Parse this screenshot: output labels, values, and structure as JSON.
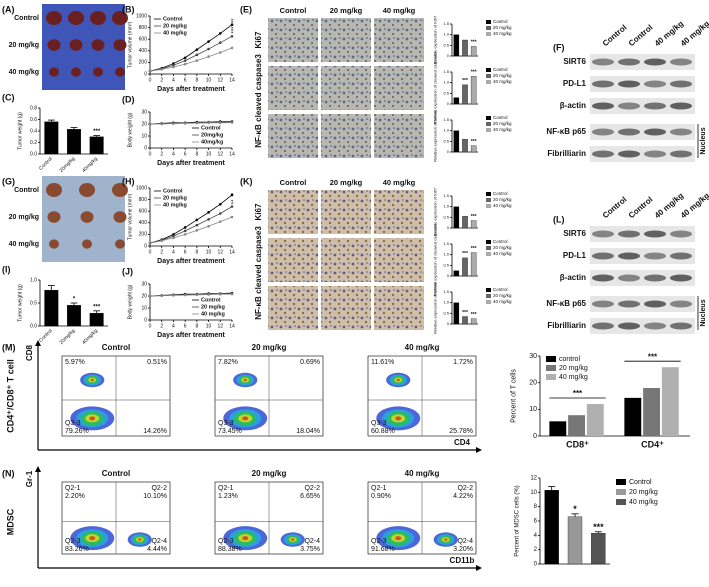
{
  "panels": {
    "A": {
      "label": "(A)",
      "rows": [
        "Control",
        "20 mg/kg",
        "40 mg/kg"
      ]
    },
    "B": {
      "label": "(B)",
      "type": "line",
      "y_label": "Tumor volume (mm³)",
      "x_label": "Days after treatment",
      "x": [
        0,
        2,
        4,
        6,
        8,
        10,
        12,
        14
      ],
      "xlim": [
        0,
        14
      ],
      "xticks": [
        0,
        2,
        4,
        6,
        8,
        10,
        12,
        14
      ],
      "ylim": [
        0,
        1000
      ],
      "yticks": [
        0,
        200,
        400,
        600,
        800,
        1000
      ],
      "legend": "upper left",
      "annotations": [
        "***",
        "***"
      ],
      "series": [
        {
          "name": "Control",
          "color": "#000000",
          "values": [
            50,
            100,
            180,
            280,
            420,
            560,
            700,
            850
          ]
        },
        {
          "name": "20 mg/kg",
          "color": "#444444",
          "values": [
            50,
            90,
            150,
            230,
            330,
            430,
            540,
            650
          ]
        },
        {
          "name": "40 mg/kg",
          "color": "#888888",
          "values": [
            50,
            80,
            120,
            170,
            230,
            300,
            370,
            450
          ]
        }
      ]
    },
    "C": {
      "label": "(C)",
      "type": "bar",
      "y_label": "Tumor weight (g)",
      "categories": [
        "Control",
        "20mg/kg",
        "40mg/kg"
      ],
      "values": [
        0.56,
        0.43,
        0.3
      ],
      "errors": [
        0.03,
        0.03,
        0.02
      ],
      "colors": [
        "#000000",
        "#000000",
        "#000000"
      ],
      "ylim": [
        0,
        0.8
      ],
      "yticks": [
        {
          "value": 0,
          "label": "0.0"
        },
        0.2,
        0.4,
        0.6,
        0.8
      ],
      "annotations": [
        null,
        null,
        "***"
      ]
    },
    "D": {
      "label": "(D)",
      "type": "line",
      "y_label": "Body weight (g)",
      "x_label": "Days after treatment",
      "x": [
        0,
        2,
        4,
        6,
        8,
        10,
        12,
        14
      ],
      "xlim": [
        0,
        14
      ],
      "xticks": [
        0,
        2,
        4,
        6,
        8,
        10,
        12,
        14
      ],
      "ylim": [
        0,
        30
      ],
      "yticks": [
        0,
        10,
        20,
        30
      ],
      "legend": "lower right",
      "series": [
        {
          "name": "Control",
          "color": "#000000",
          "values": [
            20,
            20.5,
            21,
            21,
            21.5,
            21.5,
            22,
            22
          ]
        },
        {
          "name": "20mg/kg",
          "color": "#444444",
          "values": [
            20,
            20.3,
            20.5,
            21,
            21,
            21.2,
            21.5,
            21.5
          ]
        },
        {
          "name": "40mg/kg",
          "color": "#888888",
          "values": [
            20,
            20,
            20.3,
            20.5,
            20.8,
            21,
            21,
            21.2
          ]
        }
      ]
    },
    "E": {
      "label": "(E)",
      "columns": [
        "Control",
        "20 mg/kg",
        "40 mg/kg"
      ],
      "rows": [
        "Ki67",
        "cleaved caspase3",
        "NF-κB"
      ],
      "legend": [
        "Control",
        "20 mg/kg",
        "40 mg/kg"
      ],
      "colors": [
        "#000000",
        "#666666",
        "#aaaaaa"
      ],
      "bars": [
        {
          "type": "bar",
          "y_label": "Relative expression of Ki67",
          "values": [
            1.0,
            0.75,
            0.45
          ],
          "ylim": [
            0,
            1.5
          ],
          "yticks": [
            0,
            0.5,
            {
              "value": 1,
              "label": "1.0"
            },
            1.5
          ],
          "annotations": [
            null,
            null,
            "***"
          ]
        },
        {
          "type": "bar",
          "y_label": "Relative expression of cleaved caspase3",
          "values": [
            0.3,
            0.9,
            1.3
          ],
          "ylim": [
            0,
            1.5
          ],
          "yticks": [
            0,
            0.5,
            {
              "value": 1,
              "label": "1.0"
            },
            1.5
          ],
          "annotations": [
            null,
            "***",
            "***"
          ]
        },
        {
          "type": "bar",
          "y_label": "Relative expression of NF-κB",
          "values": [
            1.0,
            0.6,
            0.3
          ],
          "ylim": [
            0,
            1.5
          ],
          "yticks": [
            0,
            0.5,
            {
              "value": 1,
              "label": "1.0"
            },
            1.5
          ],
          "annotations": [
            null,
            null,
            "***"
          ]
        }
      ]
    },
    "F": {
      "label": "(F)",
      "lanes": [
        "Control",
        "Control",
        "40 mg/kg",
        "40 mg/kg"
      ],
      "rows": [
        "SIRT6",
        "PD-L1",
        "β-actin",
        "NF-κB p65",
        "Fibrilliarin"
      ],
      "compartment": "Nucleus"
    },
    "G": {
      "label": "(G)",
      "rows": [
        "Control",
        "20 mg/kg",
        "40 mg/kg"
      ]
    },
    "H": {
      "label": "(H)",
      "type": "line",
      "y_label": "Tumor volume (mm³)",
      "x_label": "Days after treatment",
      "x": [
        0,
        2,
        4,
        6,
        8,
        10,
        12,
        14
      ],
      "xlim": [
        0,
        14
      ],
      "xticks": [
        0,
        2,
        4,
        6,
        8,
        10,
        12,
        14
      ],
      "ylim": [
        0,
        1000
      ],
      "yticks": [
        0,
        200,
        400,
        600,
        800,
        1000
      ],
      "legend": "upper left",
      "annotations": [
        "*",
        "**"
      ],
      "series": [
        {
          "name": "Control",
          "color": "#000000",
          "values": [
            50,
            110,
            200,
            320,
            450,
            580,
            720,
            880
          ]
        },
        {
          "name": "20 mg/kg",
          "color": "#444444",
          "values": [
            50,
            100,
            170,
            260,
            360,
            460,
            560,
            680
          ]
        },
        {
          "name": "40 mg/kg",
          "color": "#888888",
          "values": [
            50,
            90,
            140,
            200,
            270,
            340,
            420,
            500
          ]
        }
      ]
    },
    "I": {
      "label": "(I)",
      "type": "bar",
      "y_label": "Tumor weight (g)",
      "categories": [
        "Control",
        "20mg/kg",
        "40mg/kg"
      ],
      "values": [
        0.78,
        0.45,
        0.28
      ],
      "errors": [
        0.1,
        0.05,
        0.05
      ],
      "colors": [
        "#000000",
        "#000000",
        "#000000"
      ],
      "ylim": [
        0,
        1
      ],
      "yticks": [
        {
          "value": 0,
          "label": "0.0"
        },
        0.5,
        {
          "value": 1,
          "label": "1.0"
        }
      ],
      "annotations": [
        null,
        "*",
        "***"
      ]
    },
    "J": {
      "label": "(J)",
      "type": "line",
      "y_label": "Body weight (g)",
      "x_label": "Days after treatment",
      "x": [
        0,
        2,
        4,
        6,
        8,
        10,
        12,
        14
      ],
      "xlim": [
        0,
        14
      ],
      "xticks": [
        0,
        2,
        4,
        6,
        8,
        10,
        12,
        14
      ],
      "ylim": [
        0,
        30
      ],
      "yticks": [
        0,
        10,
        20,
        30
      ],
      "legend": "lower right",
      "series": [
        {
          "name": "Control",
          "color": "#000000",
          "values": [
            20,
            20.5,
            21,
            21.5,
            21.5,
            22,
            22,
            22.5
          ]
        },
        {
          "name": "20 mg/kg",
          "color": "#444444",
          "values": [
            20,
            20.3,
            20.8,
            21,
            21.2,
            21.5,
            21.8,
            22
          ]
        },
        {
          "name": "40 mg/kg",
          "color": "#888888",
          "values": [
            20,
            20.2,
            20.5,
            20.8,
            21,
            21.2,
            21.5,
            21.6
          ]
        }
      ]
    },
    "K": {
      "label": "(K)",
      "columns": [
        "Control",
        "20 mg/kg",
        "40 mg/kg"
      ],
      "rows": [
        "Ki67",
        "cleaved caspase3",
        "NF-κB"
      ],
      "legend": [
        "Control",
        "20 mg/kg",
        "40 mg/kg"
      ],
      "colors": [
        "#000000",
        "#666666",
        "#aaaaaa"
      ],
      "bars": [
        {
          "type": "bar",
          "y_label": "Relative expression of Ki67",
          "values": [
            1.0,
            0.55,
            0.35
          ],
          "ylim": [
            0,
            1.5
          ],
          "yticks": [
            0,
            0.5,
            {
              "value": 1,
              "label": "1.0"
            },
            1.5
          ],
          "annotations": [
            null,
            null,
            "***"
          ]
        },
        {
          "type": "bar",
          "y_label": "Relative expression of cleaved caspase3",
          "values": [
            0.25,
            0.85,
            1.1
          ],
          "ylim": [
            0,
            1.5
          ],
          "yticks": [
            0,
            0.5,
            {
              "value": 1,
              "label": "1.0"
            },
            1.5
          ],
          "annotations": [
            null,
            "***",
            "***"
          ]
        },
        {
          "type": "bar",
          "y_label": "Relative expression of NF-κB",
          "values": [
            1.0,
            0.35,
            0.25
          ],
          "ylim": [
            0,
            1.5
          ],
          "yticks": [
            0,
            0.5,
            {
              "value": 1,
              "label": "1.0"
            },
            1.5
          ],
          "annotations": [
            null,
            "***",
            "***"
          ]
        }
      ]
    },
    "L": {
      "label": "(L)",
      "lanes": [
        "Control",
        "Control",
        "40 mg/kg",
        "40 mg/kg"
      ],
      "rows": [
        "SIRT6",
        "PD-L1",
        "β-actin",
        "NF-κB p65",
        "Fibrilliarin"
      ],
      "compartment": "Nucleus"
    },
    "M": {
      "label": "(M)",
      "y_label": "CD4⁺/CD8⁺ T cell",
      "flow_x": "CD4",
      "flow_y": "CD8",
      "plots": [
        {
          "title": "Control",
          "quadrants": [
            {
              "text": "5.97%"
            },
            {
              "text": "0.51%"
            },
            {
              "id": "Q3-3",
              "text": "79.26%"
            },
            {
              "text": "14.26%"
            }
          ]
        },
        {
          "title": "20 mg/kg",
          "quadrants": [
            {
              "text": "7.82%"
            },
            {
              "text": "0.69%"
            },
            {
              "id": "Q3-3",
              "text": "73.45%"
            },
            {
              "text": "18.04%"
            }
          ]
        },
        {
          "title": "40 mg/kg",
          "quadrants": [
            {
              "text": "11.61%"
            },
            {
              "text": "1.72%"
            },
            {
              "id": "Q3-3",
              "text": "60.88%"
            },
            {
              "text": "25.78%"
            }
          ]
        }
      ],
      "chart": {
        "type": "grouped_bar",
        "y_label": "Percent of T cells",
        "categories": [
          "CD8⁺",
          "CD4⁺"
        ],
        "ylim": [
          0,
          30
        ],
        "yticks": [
          0,
          10,
          20,
          30
        ],
        "legend": "upper left",
        "annotations": [
          "***",
          "***"
        ],
        "series": [
          {
            "name": "control",
            "color": "#000000",
            "values": [
              5.5,
              14.3
            ]
          },
          {
            "name": "20 mg/kg",
            "color": "#777777",
            "values": [
              7.8,
              18
            ]
          },
          {
            "name": "40 mg/kg",
            "color": "#b0b0b0",
            "values": [
              12,
              25.8
            ]
          }
        ]
      }
    },
    "N": {
      "label": "(N)",
      "y_label": "MDSC",
      "flow_x": "CD11b",
      "flow_y": "Gr-1",
      "plots": [
        {
          "title": "Control",
          "quadrants": [
            {
              "id": "Q2-1",
              "text": "2.20%"
            },
            {
              "id": "Q2-2",
              "text": "10.10%"
            },
            {
              "id": "Q2-3",
              "text": "83.26%"
            },
            {
              "id": "Q2-4",
              "text": "4.44%"
            }
          ]
        },
        {
          "title": "20 mg/kg",
          "quadrants": [
            {
              "id": "Q2-1",
              "text": "1.23%"
            },
            {
              "id": "Q2-2",
              "text": "6.65%"
            },
            {
              "id": "Q2-3",
              "text": "88.38%"
            },
            {
              "id": "Q2-4",
              "text": "3.75%"
            }
          ]
        },
        {
          "title": "40 mg/kg",
          "quadrants": [
            {
              "id": "Q2-1",
              "text": "0.90%"
            },
            {
              "id": "Q2-2",
              "text": "4.22%"
            },
            {
              "id": "Q2-3",
              "text": "91.68%"
            },
            {
              "id": "Q2-4",
              "text": "3.20%"
            }
          ]
        }
      ],
      "chart": {
        "type": "bar",
        "y_label": "Percent of MDSC cells (%)",
        "categories": [
          "Control",
          "20 mg/kg",
          "40 mg/kg"
        ],
        "values": [
          10.3,
          6.6,
          4.3
        ],
        "errors": [
          0.5,
          0.4,
          0.2
        ],
        "colors": [
          "#000000",
          "#999999",
          "#555555"
        ],
        "ylim": [
          0,
          12
        ],
        "yticks": [
          0,
          2,
          4,
          6,
          8,
          10,
          12
        ],
        "legend": "upper right",
        "annotations": [
          null,
          "*",
          "***"
        ]
      }
    }
  }
}
